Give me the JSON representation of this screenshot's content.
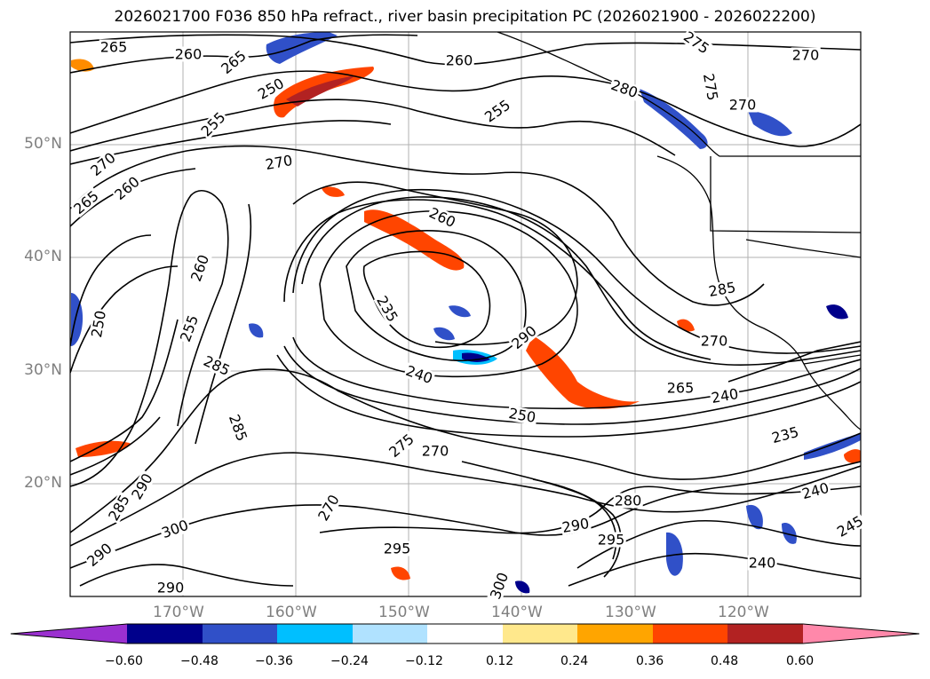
{
  "title": "2026021700 F036 850 hPa refract., river basin precipitation PC (2026021900 - 2026022200)",
  "axes": {
    "lat_labels": [
      "50°N",
      "40°N",
      "30°N",
      "20°N"
    ],
    "lon_labels": [
      "170°W",
      "160°W",
      "150°W",
      "140°W",
      "130°W",
      "120°W"
    ]
  },
  "contour_labels": [
    "265",
    "260",
    "265",
    "260",
    "275",
    "270",
    "255",
    "250",
    "255",
    "270",
    "265",
    "260",
    "270",
    "275",
    "270",
    "260",
    "235",
    "240",
    "250",
    "285",
    "255",
    "260",
    "250",
    "285",
    "275",
    "270",
    "265",
    "240",
    "235",
    "240",
    "280",
    "290",
    "295",
    "290",
    "300",
    "285",
    "290",
    "295",
    "240",
    "245",
    "270",
    "285",
    "290",
    "270",
    "290",
    "280",
    "300"
  ],
  "colorbar": {
    "ticks": [
      "−0.60",
      "−0.48",
      "−0.36",
      "−0.24",
      "−0.12",
      "0.12",
      "0.24",
      "0.36",
      "0.48",
      "0.60"
    ],
    "colors": [
      "#9b30d0",
      "#00008b",
      "#3050c8",
      "#00bfff",
      "#b0e2ff",
      "#ffffff",
      "#ffe88c",
      "#ffa500",
      "#ff4500",
      "#b22222",
      "#ff88aa"
    ]
  },
  "chart_data": {
    "type": "map",
    "projection": "PlateCarree",
    "extent": {
      "lon": [
        -180,
        -110
      ],
      "lat": [
        10,
        60
      ]
    },
    "levels": [
      -0.6,
      -0.48,
      -0.36,
      -0.24,
      -0.12,
      0.12,
      0.24,
      0.36,
      0.48,
      0.6
    ],
    "contour_variable": "850 hPa refractivity",
    "contour_values_labeled": [
      235,
      240,
      245,
      250,
      255,
      260,
      265,
      270,
      275,
      280,
      285,
      290,
      295,
      300
    ]
  }
}
